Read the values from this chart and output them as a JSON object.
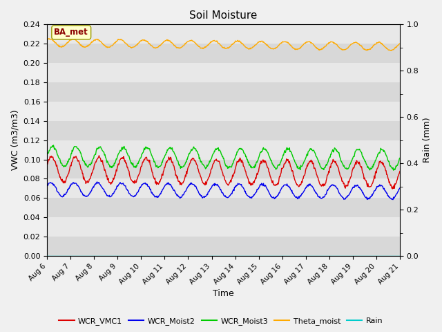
{
  "title": "Soil Moisture",
  "xlabel": "Time",
  "ylabel_left": "VWC (m3/m3)",
  "ylabel_right": "Rain (mm)",
  "ylim_left": [
    0.0,
    0.24
  ],
  "ylim_right": [
    0.0,
    1.0
  ],
  "background_color": "#f0f0f0",
  "plot_bg_color": "#e8e8e8",
  "grid_color": "white",
  "annotation_text": "BA_met",
  "annotation_bg": "#ffffcc",
  "annotation_border": "#999900",
  "annotation_text_color": "#8b0000",
  "series": {
    "WCR_VMC1": {
      "color": "#dd0000",
      "base": 0.09,
      "amp": 0.013,
      "period": 1.0,
      "trend": -0.006
    },
    "WCR_Moist2": {
      "color": "#0000ee",
      "base": 0.069,
      "amp": 0.007,
      "period": 1.0,
      "trend": -0.003
    },
    "WCR_Moist3": {
      "color": "#00cc00",
      "base": 0.103,
      "amp": 0.01,
      "period": 1.0,
      "trend": -0.003
    },
    "Theta_moist": {
      "color": "#ffaa00",
      "base": 0.221,
      "amp": 0.004,
      "period": 1.0,
      "trend": -0.004
    },
    "Rain": {
      "color": "#00cccc",
      "base": 0.0,
      "amp": 0.0,
      "period": 1.0,
      "trend": 0.0
    }
  },
  "x_tick_labels": [
    "Aug 6",
    "Aug 7",
    "Aug 8",
    "Aug 9",
    "Aug 10",
    "Aug 11",
    "Aug 12",
    "Aug 13",
    "Aug 14",
    "Aug 15",
    "Aug 16",
    "Aug 17",
    "Aug 18",
    "Aug 19",
    "Aug 20",
    "Aug 21"
  ],
  "yticks_left": [
    0.0,
    0.02,
    0.04,
    0.06,
    0.08,
    0.1,
    0.12,
    0.14,
    0.16,
    0.18,
    0.2,
    0.22,
    0.24
  ],
  "yticks_right": [
    0.0,
    0.2,
    0.4,
    0.6,
    0.8,
    1.0
  ],
  "band_colors": [
    "#d8d8d8",
    "#e8e8e8"
  ]
}
